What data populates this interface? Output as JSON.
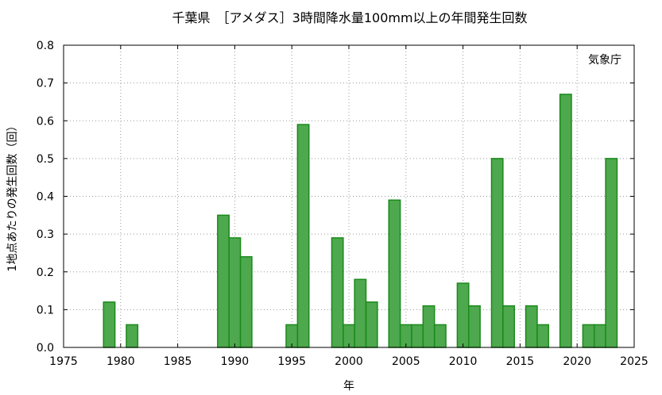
{
  "chart_data": {
    "type": "bar",
    "title": "千葉県　［アメダス］3時間降水量100mm以上の年間発生回数",
    "xlabel": "年",
    "ylabel": "1地点あたりの発生回数（回）",
    "annotation": "気象庁",
    "xlim": [
      1975,
      2025
    ],
    "ylim": [
      0,
      0.8
    ],
    "x_ticks": [
      "1975",
      "1980",
      "1985",
      "1990",
      "1995",
      "2000",
      "2005",
      "2010",
      "2015",
      "2020",
      "2025"
    ],
    "y_ticks": [
      "0.0",
      "0.1",
      "0.2",
      "0.3",
      "0.4",
      "0.5",
      "0.6",
      "0.7",
      "0.8"
    ],
    "grid": true,
    "bar_color": "#4ea84e",
    "bar_edge_color": "#1a8a1a",
    "years": [
      1979,
      1981,
      1989,
      1990,
      1991,
      1995,
      1996,
      1999,
      2000,
      2001,
      2002,
      2004,
      2005,
      2006,
      2007,
      2008,
      2010,
      2011,
      2013,
      2014,
      2016,
      2017,
      2019,
      2021,
      2022,
      2023
    ],
    "values": [
      0.12,
      0.06,
      0.35,
      0.29,
      0.24,
      0.06,
      0.59,
      0.29,
      0.06,
      0.18,
      0.12,
      0.39,
      0.06,
      0.06,
      0.11,
      0.06,
      0.17,
      0.11,
      0.5,
      0.11,
      0.11,
      0.06,
      0.67,
      0.06,
      0.06,
      0.5
    ]
  }
}
